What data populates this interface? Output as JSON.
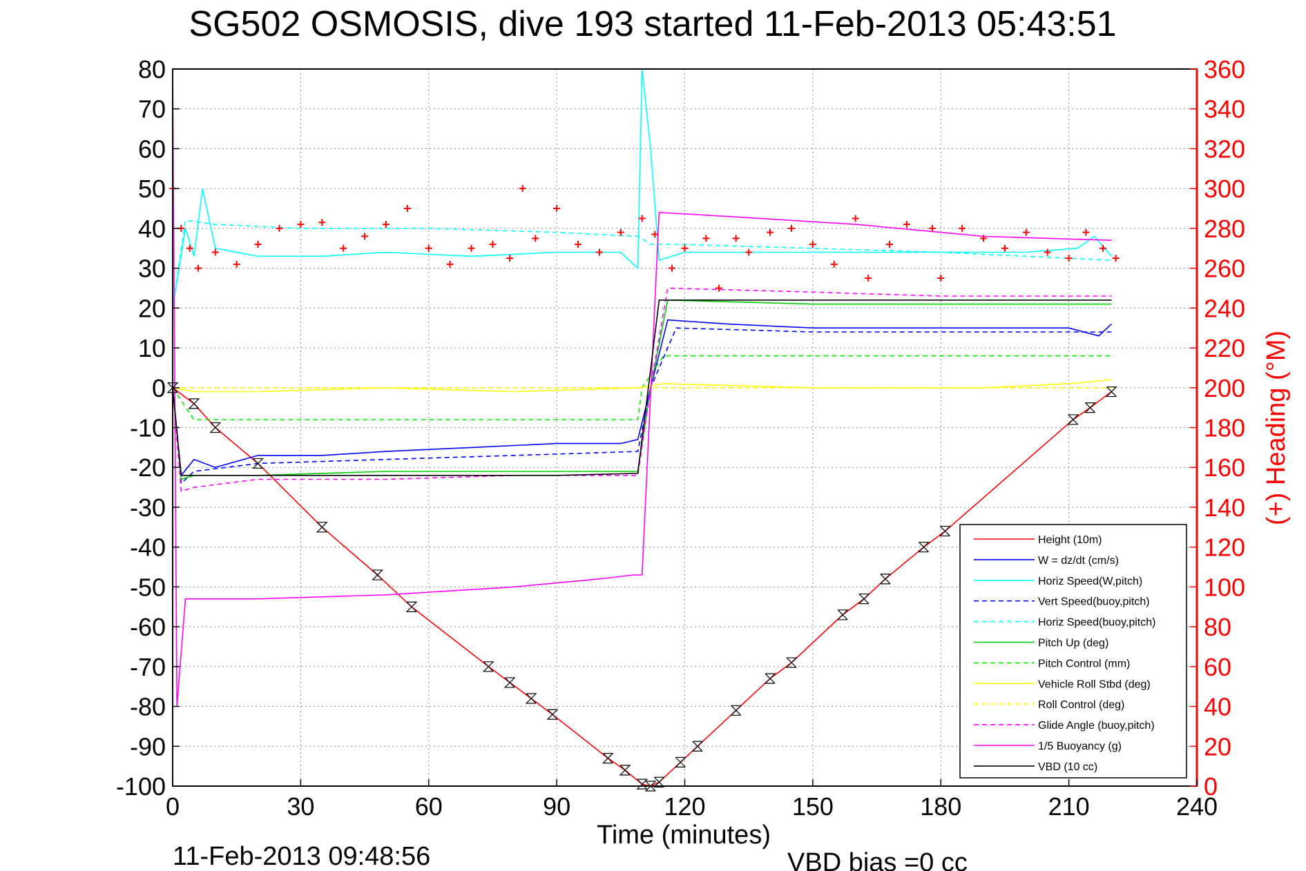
{
  "chart_data": {
    "type": "line",
    "title": "SG502 OSMOSIS, dive 193 started 11-Feb-2013 05:43:51",
    "xlabel": "Time (minutes)",
    "ylabel": "",
    "y2label": "(+) Heading (°M)",
    "xlim": [
      0,
      240
    ],
    "ylim": [
      -100,
      80
    ],
    "y2lim": [
      0,
      360
    ],
    "xticks": [
      "0",
      "30",
      "60",
      "90",
      "120",
      "150",
      "180",
      "210",
      "240"
    ],
    "yticks": [
      "80",
      "70",
      "60",
      "50",
      "40",
      "30",
      "20",
      "10",
      "0",
      "-10",
      "-20",
      "-30",
      "-40",
      "-50",
      "-60",
      "-70",
      "-80",
      "-90",
      "-100"
    ],
    "y2ticks": [
      "360",
      "340",
      "320",
      "300",
      "280",
      "260",
      "240",
      "220",
      "200",
      "180",
      "160",
      "140",
      "120",
      "100",
      "80",
      "60",
      "40",
      "20",
      "0"
    ],
    "grid": true,
    "legend_position": "bottom-right",
    "footer_date": "11-Feb-2013 09:48:56",
    "footer_bias": "VBD bias =0 cc",
    "series": [
      {
        "name": "Height (10m)",
        "color": "#ff0000",
        "style": "solid",
        "axis": "left",
        "x": [
          0,
          5,
          10,
          20,
          35,
          48,
          56,
          74,
          79,
          84,
          89,
          102,
          106,
          110,
          112,
          114,
          119,
          123,
          132,
          140,
          145,
          157,
          162,
          167,
          176,
          181,
          211,
          215,
          220
        ],
        "y": [
          0,
          -4,
          -10,
          -19,
          -35,
          -47,
          -55,
          -70,
          -74,
          -78,
          -82,
          -93,
          -96,
          -99.5,
          -100,
          -99,
          -94,
          -90,
          -81,
          -73,
          -69,
          -57,
          -53,
          -48,
          -40,
          -36,
          -8,
          -5,
          -1
        ]
      },
      {
        "name": "W = dz/dt (cm/s)",
        "color": "#0000ff",
        "style": "solid",
        "axis": "left",
        "x": [
          0,
          2,
          5,
          10,
          20,
          35,
          50,
          70,
          90,
          105,
          109,
          112,
          116,
          130,
          150,
          170,
          190,
          210,
          217,
          220
        ],
        "y": [
          0,
          -22,
          -18,
          -20,
          -17,
          -17,
          -16,
          -15,
          -14,
          -14,
          -13,
          0,
          17,
          16,
          15,
          15,
          15,
          15,
          13,
          16
        ]
      },
      {
        "name": "Horiz Speed(W,pitch)",
        "color": "#00ffff",
        "style": "solid",
        "axis": "left",
        "x": [
          0,
          3,
          5,
          7,
          10,
          20,
          35,
          50,
          70,
          90,
          105,
          109,
          110,
          111,
          112,
          114,
          120,
          140,
          160,
          180,
          200,
          212,
          216,
          220
        ],
        "y": [
          20,
          40,
          33,
          50,
          35,
          33,
          33,
          34,
          33,
          34,
          34,
          30,
          80,
          70,
          60,
          32,
          34,
          34,
          34,
          34,
          34,
          35,
          38,
          33
        ]
      },
      {
        "name": "Vert Speed(buoy,pitch)",
        "color": "#0000ff",
        "style": "dashed",
        "axis": "left",
        "x": [
          0,
          2,
          5,
          20,
          50,
          80,
          109,
          112,
          118,
          150,
          180,
          220
        ],
        "y": [
          0,
          -24,
          -21,
          -19,
          -18,
          -17,
          -16,
          0,
          15,
          14,
          14,
          14
        ]
      },
      {
        "name": "Horiz Speed(buoy,pitch)",
        "color": "#00ffff",
        "style": "dashed",
        "axis": "left",
        "x": [
          0,
          3,
          10,
          30,
          60,
          90,
          109,
          112,
          118,
          150,
          180,
          220
        ],
        "y": [
          20,
          42,
          41,
          40,
          40,
          39,
          38,
          36,
          36,
          35,
          34,
          32
        ]
      },
      {
        "name": "Pitch Up (deg)",
        "color": "#00cc00",
        "style": "solid",
        "axis": "left",
        "x": [
          0,
          2,
          5,
          20,
          50,
          80,
          109,
          112,
          116,
          150,
          180,
          220
        ],
        "y": [
          0,
          -23,
          -22,
          -22,
          -21,
          -21,
          -21,
          0,
          22,
          21,
          21,
          21
        ]
      },
      {
        "name": "Pitch Control (mm)",
        "color": "#00ee00",
        "style": "dashed",
        "axis": "left",
        "x": [
          0,
          5,
          109,
          110,
          115,
          220
        ],
        "y": [
          0,
          -8,
          -8,
          0,
          8,
          8
        ]
      },
      {
        "name": "Vehicle Roll Stbd (deg)",
        "color": "#ffff00",
        "style": "solid",
        "axis": "left",
        "x": [
          0,
          5,
          20,
          50,
          80,
          109,
          115,
          150,
          190,
          210,
          220
        ],
        "y": [
          0,
          -1,
          -1,
          0,
          -1,
          0,
          1,
          0,
          0,
          1,
          2
        ]
      },
      {
        "name": "Roll Control (deg)",
        "color": "#ffff00",
        "style": "dashed",
        "axis": "left",
        "x": [
          0,
          5,
          109,
          115,
          220
        ],
        "y": [
          0,
          0,
          0,
          0,
          0
        ]
      },
      {
        "name": "Glide Angle (buoy,pitch)",
        "color": "#ff00ff",
        "style": "dashed",
        "axis": "left",
        "x": [
          0,
          2,
          5,
          20,
          50,
          80,
          109,
          112,
          116,
          150,
          180,
          220
        ],
        "y": [
          0,
          -26,
          -25,
          -23,
          -23,
          -22,
          -22,
          0,
          25,
          24,
          23,
          23
        ]
      },
      {
        "name": "1/5 Buoyancy (g)",
        "color": "#ff00ff",
        "style": "solid",
        "axis": "left",
        "x": [
          0,
          1,
          3,
          5,
          20,
          50,
          80,
          100,
          108,
          110,
          114,
          130,
          160,
          190,
          220
        ],
        "y": [
          80,
          -80,
          -53,
          -53,
          -53,
          -52,
          -50,
          -48,
          -47,
          -47,
          44,
          43,
          41,
          38,
          37
        ]
      },
      {
        "name": "VBD (10 cc)",
        "color": "#000000",
        "style": "solid",
        "axis": "left",
        "x": [
          0,
          2,
          5,
          30,
          60,
          90,
          109,
          114,
          150,
          180,
          220
        ],
        "y": [
          0,
          -22,
          -22,
          -22,
          -22,
          -22,
          -21.5,
          22,
          22,
          22,
          22
        ]
      },
      {
        "name": "Heading",
        "color": "#ff0000",
        "style": "plus-markers",
        "axis": "right",
        "x": [
          0,
          2,
          4,
          6,
          10,
          15,
          20,
          25,
          30,
          35,
          40,
          45,
          50,
          55,
          60,
          65,
          70,
          75,
          79,
          82,
          85,
          90,
          95,
          100,
          105,
          110,
          113,
          117,
          120,
          125,
          128,
          132,
          135,
          140,
          145,
          150,
          155,
          160,
          163,
          168,
          172,
          178,
          180,
          185,
          190,
          195,
          200,
          205,
          210,
          214,
          218,
          221
        ],
        "y": [
          300,
          280,
          270,
          260,
          268,
          262,
          272,
          280,
          282,
          283,
          270,
          276,
          282,
          290,
          270,
          262,
          270,
          272,
          265,
          300,
          275,
          290,
          272,
          268,
          278,
          285,
          277,
          260,
          270,
          275,
          250,
          275,
          268,
          278,
          280,
          272,
          262,
          285,
          255,
          272,
          282,
          280,
          255,
          280,
          275,
          270,
          278,
          268,
          265,
          278,
          270,
          265
        ]
      }
    ]
  }
}
